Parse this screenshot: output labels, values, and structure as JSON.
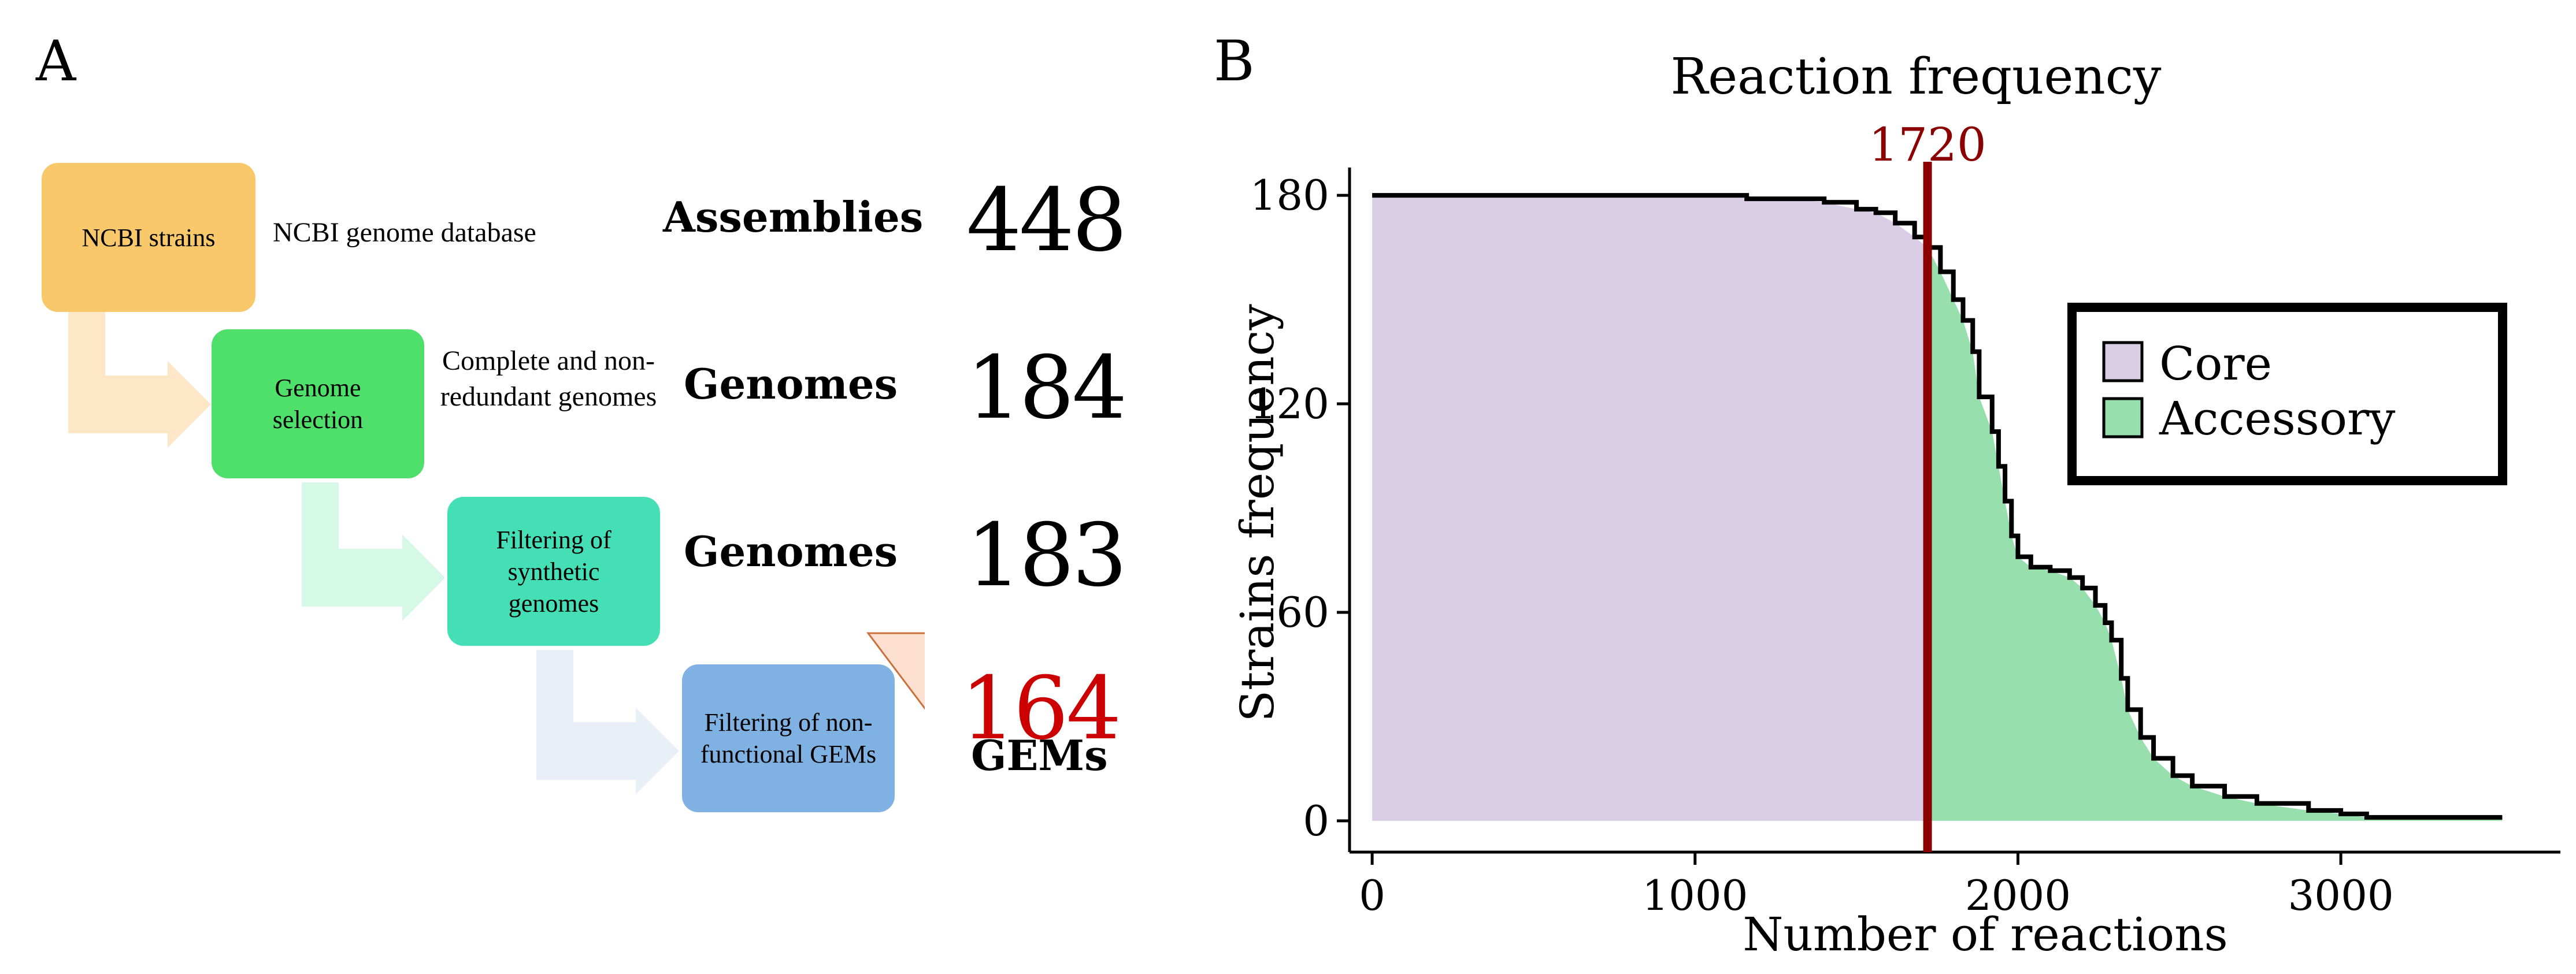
{
  "panel_a": {
    "letter": "A",
    "boxes": [
      {
        "label": "NCBI strains",
        "description": "NCBI genome database",
        "stage": "Assemblies",
        "count": "448"
      },
      {
        "label": "Genome selection",
        "description": "Complete and non-redundant genomes",
        "stage": "Genomes",
        "count": "184"
      },
      {
        "label": "Filtering of synthetic genomes",
        "description": "",
        "stage": "Genomes",
        "count": "183"
      },
      {
        "label": "Filtering of non-functional GEMs",
        "description": "",
        "stage": "GEMs",
        "count": "164"
      }
    ],
    "colors": {
      "box1": "#f8c86a",
      "box2": "#4ee06a",
      "box3": "#45dfb6",
      "box4": "#7fb2e3",
      "arrow_fill": "#fde0cf",
      "arrow_stroke": "#c9703d",
      "final_count": "#cc0000"
    }
  },
  "panel_b": {
    "letter": "B"
  },
  "chart_data": {
    "type": "area",
    "title": "Reaction frequency",
    "xlabel": "Number of reactions",
    "ylabel": "Strains frequency",
    "xlim": [
      -70,
      3680
    ],
    "ylim": [
      -9,
      188
    ],
    "xticks": [
      0,
      1000,
      2000,
      3000
    ],
    "yticks": [
      0,
      60,
      120,
      180
    ],
    "threshold": {
      "x": 1720,
      "label": "1720",
      "color": "#8b0000"
    },
    "legend": {
      "position": "top-right",
      "entries": [
        {
          "name": "Core",
          "color": "#dacde6"
        },
        {
          "name": "Accessory",
          "color": "#98dfae"
        }
      ]
    },
    "curve": [
      [
        0,
        180
      ],
      [
        1150,
        180
      ],
      [
        1160,
        179
      ],
      [
        1300,
        179
      ],
      [
        1400,
        178
      ],
      [
        1500,
        176
      ],
      [
        1560,
        175
      ],
      [
        1620,
        172
      ],
      [
        1680,
        168
      ],
      [
        1720,
        165
      ],
      [
        1760,
        158
      ],
      [
        1800,
        150
      ],
      [
        1830,
        144
      ],
      [
        1860,
        135
      ],
      [
        1880,
        122
      ],
      [
        1920,
        112
      ],
      [
        1940,
        102
      ],
      [
        1960,
        92
      ],
      [
        1980,
        82
      ],
      [
        2000,
        76
      ],
      [
        2040,
        73
      ],
      [
        2100,
        72
      ],
      [
        2160,
        70
      ],
      [
        2200,
        67
      ],
      [
        2240,
        62
      ],
      [
        2270,
        57
      ],
      [
        2290,
        52
      ],
      [
        2320,
        41
      ],
      [
        2340,
        32
      ],
      [
        2380,
        24
      ],
      [
        2420,
        18
      ],
      [
        2480,
        13
      ],
      [
        2540,
        10
      ],
      [
        2640,
        7
      ],
      [
        2740,
        5
      ],
      [
        2900,
        3
      ],
      [
        3000,
        2
      ],
      [
        3080,
        1
      ],
      [
        3500,
        1
      ]
    ]
  }
}
